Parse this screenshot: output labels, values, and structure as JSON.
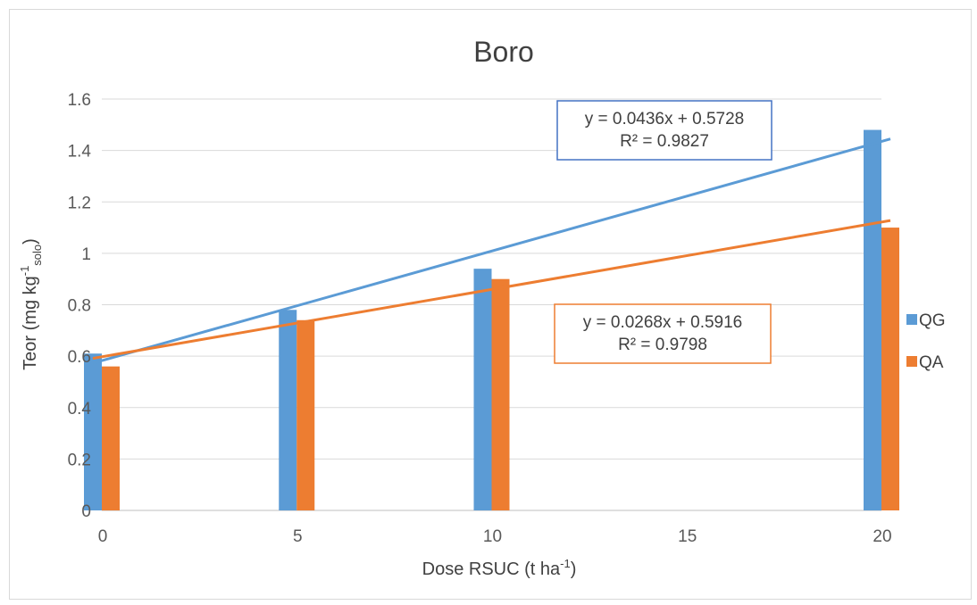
{
  "chart_data": {
    "type": "bar",
    "title": "Boro",
    "xlabel": "Dose RSUC (t ha-1)",
    "xlabel_main": "Dose RSUC (t ha",
    "xlabel_sup": "-1",
    "xlabel_end": ")",
    "ylabel": "Teor (mg kg-1solo)",
    "ylabel_main": "Teor (mg kg",
    "ylabel_sup": "-1",
    "ylabel_sub": "solo",
    "ylabel_end": ")",
    "x_ticks": [
      "0",
      "5",
      "10",
      "15",
      "20"
    ],
    "x_range": [
      0,
      20
    ],
    "ylim": [
      0,
      1.6
    ],
    "y_ticks": [
      "0",
      "0.2",
      "0.4",
      "0.6",
      "0.8",
      "1",
      "1.2",
      "1.4",
      "1.6"
    ],
    "grid": true,
    "legend_position": "right",
    "series": [
      {
        "name": "QG",
        "color": "#5b9bd5",
        "x": [
          0,
          5,
          10,
          20
        ],
        "values": [
          0.61,
          0.78,
          0.94,
          1.48
        ],
        "trendline": {
          "slope": 0.0436,
          "intercept": 0.5728,
          "equation": "y = 0.0436x + 0.5728",
          "r2": "R² = 0.9827"
        }
      },
      {
        "name": "QA",
        "color": "#ed7d31",
        "x": [
          0,
          5,
          10,
          20
        ],
        "values": [
          0.56,
          0.74,
          0.9,
          1.1
        ],
        "trendline": {
          "slope": 0.0268,
          "intercept": 0.5916,
          "equation": "y = 0.0268x + 0.5916",
          "r2": "R² = 0.9798"
        }
      }
    ],
    "annotation_box_colors": [
      "#4472c4",
      "#ed7d31"
    ]
  }
}
